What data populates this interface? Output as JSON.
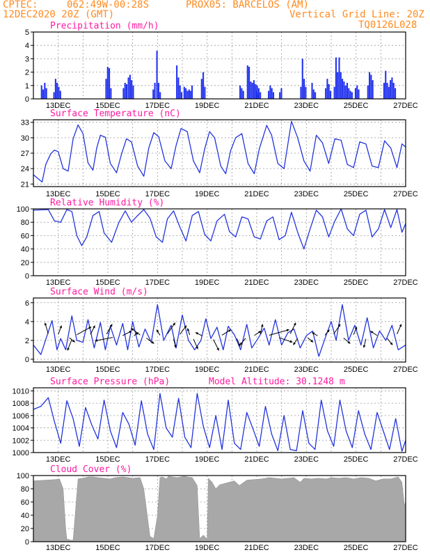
{
  "header": {
    "source": "CPTEC:",
    "coords": "062:49W-00:28S",
    "station": "PROX05: BARCELOS (AM)",
    "run": "12DEC2020 20Z (GMT)",
    "grid_note": "Vertical Grid Line: 20Z",
    "code": "TQ0126L028"
  },
  "colors": {
    "header": "#ff8a1e",
    "title": "#ff1aa0",
    "line": "#2233dd",
    "bar": "#2233ee",
    "cloud": "#a8a8a8",
    "grid": "#999999"
  },
  "x_axis": {
    "ticks": [
      "13DEC",
      "15DEC",
      "17DEC",
      "19DEC",
      "21DEC",
      "23DEC",
      "25DEC",
      "27DEC"
    ]
  },
  "chart_data": [
    {
      "type": "bar",
      "title": "Precipitation (mm/h)",
      "xlabel": "",
      "ylabel": "",
      "ylim": [
        0,
        5
      ],
      "yticks": [
        "0",
        "1",
        "2",
        "3",
        "4",
        "5"
      ],
      "events": [
        {
          "day": 12.3,
          "values": [
            1.0,
            0.7,
            1.2,
            0.8
          ]
        },
        {
          "day": 12.8,
          "values": [
            0.5,
            1.5,
            1.2,
            0.9,
            0.6
          ]
        },
        {
          "day": 14.9,
          "values": [
            1.5,
            2.4,
            2.3,
            0.8
          ]
        },
        {
          "day": 15.6,
          "values": [
            0.8,
            1.2,
            1.1
          ]
        },
        {
          "day": 15.8,
          "values": [
            1.6,
            1.8,
            1.4,
            1.0
          ]
        },
        {
          "day": 16.8,
          "values": [
            0.7,
            1.2
          ]
        },
        {
          "day": 16.95,
          "values": [
            3.6,
            1.2,
            0.5
          ]
        },
        {
          "day": 17.75,
          "values": [
            2.5,
            1.6,
            1.0,
            0.5
          ]
        },
        {
          "day": 18.05,
          "values": [
            0.9,
            0.8,
            0.6,
            0.7
          ]
        },
        {
          "day": 18.3,
          "values": [
            0.6,
            1.0
          ]
        },
        {
          "day": 18.75,
          "values": [
            1.5,
            2.0,
            0.9
          ]
        },
        {
          "day": 20.3,
          "values": [
            1.0,
            0.8,
            0.6
          ]
        },
        {
          "day": 20.6,
          "values": [
            2.5,
            2.4,
            1.3,
            1.2,
            1.4,
            1.1,
            1.0,
            0.8,
            0.5
          ]
        },
        {
          "day": 20.95,
          "values": [
            0.6,
            0.4
          ]
        },
        {
          "day": 21.45,
          "values": [
            0.6,
            1.0,
            0.8,
            0.5
          ]
        },
        {
          "day": 21.9,
          "values": [
            0.5,
            0.8
          ]
        },
        {
          "day": 22.75,
          "values": [
            0.9,
            3.0,
            1.5,
            0.9
          ]
        },
        {
          "day": 23.2,
          "values": [
            1.2,
            0.7,
            0.5
          ]
        },
        {
          "day": 23.75,
          "values": [
            0.8,
            1.5,
            1.1,
            0.6
          ]
        },
        {
          "day": 24.1,
          "values": [
            0.9,
            3.1,
            2.0,
            3.1,
            2.0,
            1.5,
            1.3,
            1.0,
            1.2,
            0.8,
            0.6,
            0.5
          ]
        },
        {
          "day": 24.95,
          "values": [
            0.8,
            1.0,
            0.7
          ]
        },
        {
          "day": 25.45,
          "values": [
            1.0,
            2.0,
            1.8,
            1.4
          ]
        },
        {
          "day": 26.1,
          "values": [
            1.2,
            2.1,
            1.2,
            0.9,
            1.4,
            1.6,
            1.2,
            0.8
          ]
        }
      ]
    },
    {
      "type": "line",
      "title": "Surface Temperature (nC)",
      "xlabel": "",
      "ylabel": "",
      "ylim": [
        20.5,
        33.5
      ],
      "yticks": [
        "21",
        "24",
        "27",
        "30",
        "33"
      ],
      "x": [
        12.0,
        12.35,
        12.5,
        12.7,
        12.85,
        13.0,
        13.2,
        13.4,
        13.6,
        13.8,
        14.0,
        14.2,
        14.4,
        14.55,
        14.7,
        14.9,
        15.1,
        15.35,
        15.55,
        15.75,
        15.95,
        16.2,
        16.45,
        16.65,
        16.85,
        17.05,
        17.3,
        17.55,
        17.75,
        17.95,
        18.2,
        18.45,
        18.7,
        18.9,
        19.1,
        19.3,
        19.55,
        19.75,
        19.95,
        20.15,
        20.4,
        20.65,
        20.9,
        21.1,
        21.4,
        21.6,
        21.85,
        22.1,
        22.4,
        22.65,
        22.9,
        23.15,
        23.4,
        23.65,
        23.9,
        24.15,
        24.4,
        24.65,
        24.9,
        25.15,
        25.4,
        25.65,
        25.9,
        26.15,
        26.4,
        26.65,
        26.85,
        27.0
      ],
      "series": [
        {
          "values": [
            22.8,
            21.4,
            24.8,
            26.9,
            27.6,
            27.3,
            24.0,
            23.5,
            29.8,
            32.5,
            30.8,
            25.1,
            23.7,
            28.0,
            30.5,
            30.1,
            25.0,
            23.2,
            26.8,
            29.8,
            29.2,
            24.5,
            22.5,
            28.0,
            31.0,
            30.2,
            25.5,
            24.0,
            28.5,
            31.8,
            31.2,
            25.5,
            23.2,
            27.8,
            31.2,
            30.0,
            24.5,
            23.0,
            27.5,
            30.0,
            30.8,
            25.0,
            23.0,
            27.8,
            32.4,
            30.5,
            25.0,
            24.0,
            33.2,
            30.0,
            25.5,
            23.5,
            30.5,
            29.0,
            25.0,
            29.8,
            29.5,
            24.8,
            24.2,
            29.2,
            28.8,
            24.5,
            24.2,
            29.4,
            28.0,
            24.2,
            28.8,
            28.2
          ]
        }
      ]
    },
    {
      "type": "line",
      "title": "Relative Humidity (%)",
      "xlabel": "",
      "ylabel": "",
      "ylim": [
        0,
        100
      ],
      "yticks": [
        "0",
        "20",
        "40",
        "60",
        "80",
        "100"
      ],
      "x": [
        12.0,
        12.6,
        12.85,
        13.1,
        13.35,
        13.55,
        13.75,
        13.95,
        14.15,
        14.4,
        14.65,
        14.85,
        15.15,
        15.45,
        15.7,
        15.95,
        16.2,
        16.45,
        16.7,
        16.95,
        17.2,
        17.4,
        17.65,
        17.9,
        18.15,
        18.4,
        18.65,
        18.9,
        19.15,
        19.4,
        19.7,
        19.9,
        20.15,
        20.4,
        20.65,
        20.9,
        21.15,
        21.4,
        21.65,
        21.9,
        22.15,
        22.4,
        22.65,
        22.9,
        23.15,
        23.4,
        23.65,
        23.9,
        24.15,
        24.4,
        24.65,
        24.9,
        25.15,
        25.4,
        25.65,
        25.9,
        26.15,
        26.4,
        26.65,
        26.85,
        27.0
      ],
      "series": [
        {
          "values": [
            98,
            99,
            82,
            80,
            99,
            96,
            60,
            45,
            58,
            90,
            96,
            64,
            50,
            80,
            97,
            80,
            90,
            99,
            86,
            58,
            50,
            85,
            97,
            73,
            52,
            90,
            96,
            62,
            52,
            82,
            92,
            66,
            58,
            88,
            85,
            58,
            55,
            82,
            88,
            54,
            60,
            95,
            65,
            40,
            70,
            98,
            88,
            58,
            82,
            100,
            70,
            60,
            92,
            98,
            58,
            70,
            99,
            72,
            99,
            65,
            78
          ]
        }
      ]
    },
    {
      "type": "line",
      "title": "Surface Wind (m/s)",
      "xlabel": "",
      "ylabel": "",
      "ylim": [
        -0.3,
        6.5
      ],
      "yticks": [
        "0",
        "2",
        "4",
        "6"
      ],
      "x": [
        12.0,
        12.3,
        12.55,
        12.75,
        12.95,
        13.1,
        13.3,
        13.55,
        13.75,
        14.0,
        14.2,
        14.45,
        14.7,
        14.9,
        15.1,
        15.35,
        15.6,
        15.8,
        16.0,
        16.25,
        16.5,
        16.75,
        17.0,
        17.25,
        17.55,
        17.75,
        18.0,
        18.25,
        18.5,
        18.75,
        18.95,
        19.15,
        19.4,
        19.65,
        19.85,
        20.1,
        20.35,
        20.6,
        20.8,
        21.05,
        21.3,
        21.5,
        21.75,
        22.0,
        22.25,
        22.5,
        22.75,
        23.0,
        23.25,
        23.5,
        23.75,
        24.0,
        24.2,
        24.45,
        24.7,
        24.95,
        25.2,
        25.45,
        25.7,
        25.95,
        26.2,
        26.45,
        26.7,
        27.0
      ],
      "series": [
        {
          "values": [
            1.5,
            0.5,
            2.5,
            4.1,
            1.0,
            2.2,
            1.0,
            4.6,
            2.0,
            1.8,
            4.2,
            1.2,
            3.9,
            1.0,
            3.5,
            1.5,
            3.8,
            1.0,
            4.0,
            1.3,
            3.2,
            1.8,
            5.8,
            2.0,
            3.6,
            1.2,
            4.7,
            2.0,
            1.0,
            2.0,
            4.3,
            2.2,
            3.4,
            1.0,
            3.5,
            2.6,
            1.0,
            3.7,
            1.2,
            2.2,
            3.3,
            1.5,
            4.2,
            1.5,
            2.8,
            3.2,
            1.2,
            2.5,
            3.0,
            0.3,
            2.2,
            4.0,
            2.0,
            5.8,
            2.0,
            3.6,
            1.5,
            4.4,
            1.2,
            3.0,
            2.0,
            3.6,
            1.0,
            1.5
          ]
        }
      ],
      "vectors": [
        {
          "day": 12.6,
          "u": -0.3,
          "v": 1.0
        },
        {
          "day": 13.0,
          "u": 0.3,
          "v": 0.8
        },
        {
          "day": 13.45,
          "u": 0.5,
          "v": -0.4
        },
        {
          "day": 13.55,
          "u": -0.4,
          "v": -1.0
        },
        {
          "day": 13.75,
          "u": 1.3,
          "v": 0.7
        },
        {
          "day": 14.3,
          "u": 0.4,
          "v": 0.8
        },
        {
          "day": 14.95,
          "u": 0.5,
          "v": 0.9
        },
        {
          "day": 15.2,
          "u": -1.6,
          "v": -0.3
        },
        {
          "day": 15.6,
          "u": 0.8,
          "v": 0.4
        },
        {
          "day": 16.05,
          "u": 0.4,
          "v": 0.3
        },
        {
          "day": 16.3,
          "u": -0.8,
          "v": 0.6
        },
        {
          "day": 16.55,
          "u": 0.7,
          "v": -0.5
        },
        {
          "day": 17.1,
          "u": -0.3,
          "v": 0.5
        },
        {
          "day": 17.4,
          "u": 0.7,
          "v": 1.0
        },
        {
          "day": 17.65,
          "u": 0.2,
          "v": -0.8
        },
        {
          "day": 17.9,
          "u": 0.6,
          "v": 0.8
        },
        {
          "day": 18.3,
          "u": -0.2,
          "v": 0.6
        },
        {
          "day": 18.45,
          "u": 0.4,
          "v": -0.9
        },
        {
          "day": 18.8,
          "u": -0.6,
          "v": 0.3
        },
        {
          "day": 19.25,
          "u": 0.5,
          "v": -1.0
        },
        {
          "day": 19.6,
          "u": 0.8,
          "v": 0.5
        },
        {
          "day": 20.2,
          "u": 0.3,
          "v": -0.7
        },
        {
          "day": 20.55,
          "u": -0.5,
          "v": -0.6
        },
        {
          "day": 20.9,
          "u": 0.6,
          "v": 0.4
        },
        {
          "day": 21.15,
          "u": 0.2,
          "v": 0.9
        },
        {
          "day": 21.5,
          "u": 1.8,
          "v": 0.5
        },
        {
          "day": 21.9,
          "u": 1.2,
          "v": -0.4
        },
        {
          "day": 22.35,
          "u": 0.5,
          "v": 1.0
        },
        {
          "day": 22.65,
          "u": -0.4,
          "v": -0.6
        },
        {
          "day": 23.05,
          "u": 0.5,
          "v": -0.4
        },
        {
          "day": 23.45,
          "u": -0.5,
          "v": 0.3
        },
        {
          "day": 23.75,
          "u": 0.4,
          "v": 0.5
        },
        {
          "day": 24.1,
          "u": 0.6,
          "v": 0.9
        },
        {
          "day": 24.5,
          "u": 0.6,
          "v": -0.5
        },
        {
          "day": 24.9,
          "u": 0.3,
          "v": 0.7
        },
        {
          "day": 25.4,
          "u": -0.2,
          "v": -0.8
        },
        {
          "day": 25.85,
          "u": -0.6,
          "v": 0.4
        },
        {
          "day": 26.25,
          "u": 0.5,
          "v": -0.6
        },
        {
          "day": 26.65,
          "u": 0.4,
          "v": 0.9
        }
      ]
    },
    {
      "type": "line",
      "title": "Surface Pressure (hPa)",
      "subtitle": "Model Altitude: 30.1248 m",
      "xlabel": "",
      "ylabel": "",
      "ylim": [
        1000,
        1010.5
      ],
      "yticks": [
        "1000",
        "1002",
        "1004",
        "1006",
        "1008",
        "1010"
      ],
      "x": [
        12.0,
        12.3,
        12.6,
        12.85,
        13.1,
        13.35,
        13.6,
        13.85,
        14.1,
        14.35,
        14.6,
        14.85,
        15.1,
        15.35,
        15.6,
        15.85,
        16.1,
        16.35,
        16.6,
        16.85,
        17.1,
        17.35,
        17.6,
        17.85,
        18.1,
        18.35,
        18.6,
        18.85,
        19.1,
        19.35,
        19.6,
        19.85,
        20.1,
        20.35,
        20.6,
        20.85,
        21.1,
        21.35,
        21.6,
        21.85,
        22.1,
        22.35,
        22.6,
        22.85,
        23.1,
        23.35,
        23.6,
        23.85,
        24.1,
        24.35,
        24.6,
        24.85,
        25.1,
        25.35,
        25.6,
        25.85,
        26.1,
        26.35,
        26.6,
        26.85,
        27.0
      ],
      "series": [
        {
          "values": [
            1007.0,
            1007.5,
            1008.9,
            1005.0,
            1001.5,
            1008.4,
            1005.5,
            1001.0,
            1007.3,
            1004.5,
            1002.2,
            1008.5,
            1003.5,
            1000.8,
            1006.5,
            1004.6,
            1001.2,
            1008.4,
            1003.0,
            1000.5,
            1009.6,
            1004.0,
            1002.5,
            1008.8,
            1002.5,
            1000.8,
            1009.6,
            1004.2,
            1000.8,
            1006.0,
            1000.5,
            1008.5,
            1001.5,
            1000.5,
            1006.5,
            1003.8,
            1001.0,
            1007.5,
            1003.0,
            1000.3,
            1006.0,
            1000.5,
            1000.3,
            1006.8,
            1001.5,
            1000.5,
            1008.5,
            1003.5,
            1001.0,
            1008.5,
            1003.5,
            1000.8,
            1006.8,
            1003.0,
            1000.5,
            1006.5,
            1003.5,
            1000.5,
            1005.5,
            1000.2,
            1002.0
          ]
        }
      ]
    },
    {
      "type": "area",
      "title": "Cloud Cover (%)",
      "xlabel": "",
      "ylabel": "",
      "ylim": [
        0,
        100
      ],
      "yticks": [
        "0",
        "20",
        "40",
        "60",
        "80",
        "100"
      ],
      "x": [
        12.0,
        12.9,
        13.05,
        13.2,
        13.3,
        13.35,
        13.55,
        13.6,
        13.8,
        14.0,
        14.2,
        14.4,
        14.6,
        15.1,
        15.3,
        15.6,
        16.0,
        16.3,
        16.45,
        16.7,
        16.85,
        17.0,
        17.1,
        17.2,
        17.35,
        17.45,
        17.6,
        17.8,
        17.95,
        18.1,
        18.2,
        18.4,
        18.6,
        18.7,
        18.85,
        19.0,
        19.05,
        19.2,
        19.35,
        19.5,
        19.9,
        20.1,
        20.3,
        20.6,
        21.2,
        21.5,
        22.0,
        22.3,
        22.5,
        22.75,
        22.9,
        23.2,
        23.5,
        23.8,
        24.0,
        24.3,
        24.6,
        24.9,
        25.2,
        25.5,
        25.8,
        26.1,
        26.4,
        26.7,
        26.85,
        26.95,
        27.0
      ],
      "series": [
        {
          "values": [
            92,
            94,
            95,
            80,
            20,
            4,
            2,
            3,
            95,
            96,
            98,
            98,
            97,
            95,
            97,
            98,
            96,
            97,
            80,
            8,
            5,
            40,
            97,
            98,
            95,
            99,
            98,
            97,
            98,
            99,
            98,
            97,
            85,
            5,
            10,
            4,
            96,
            90,
            80,
            86,
            90,
            92,
            85,
            93,
            95,
            97,
            95,
            96,
            97,
            90,
            96,
            95,
            96,
            95,
            97,
            96,
            97,
            95,
            97,
            96,
            92,
            95,
            95,
            98,
            90,
            55,
            60
          ]
        }
      ]
    }
  ]
}
